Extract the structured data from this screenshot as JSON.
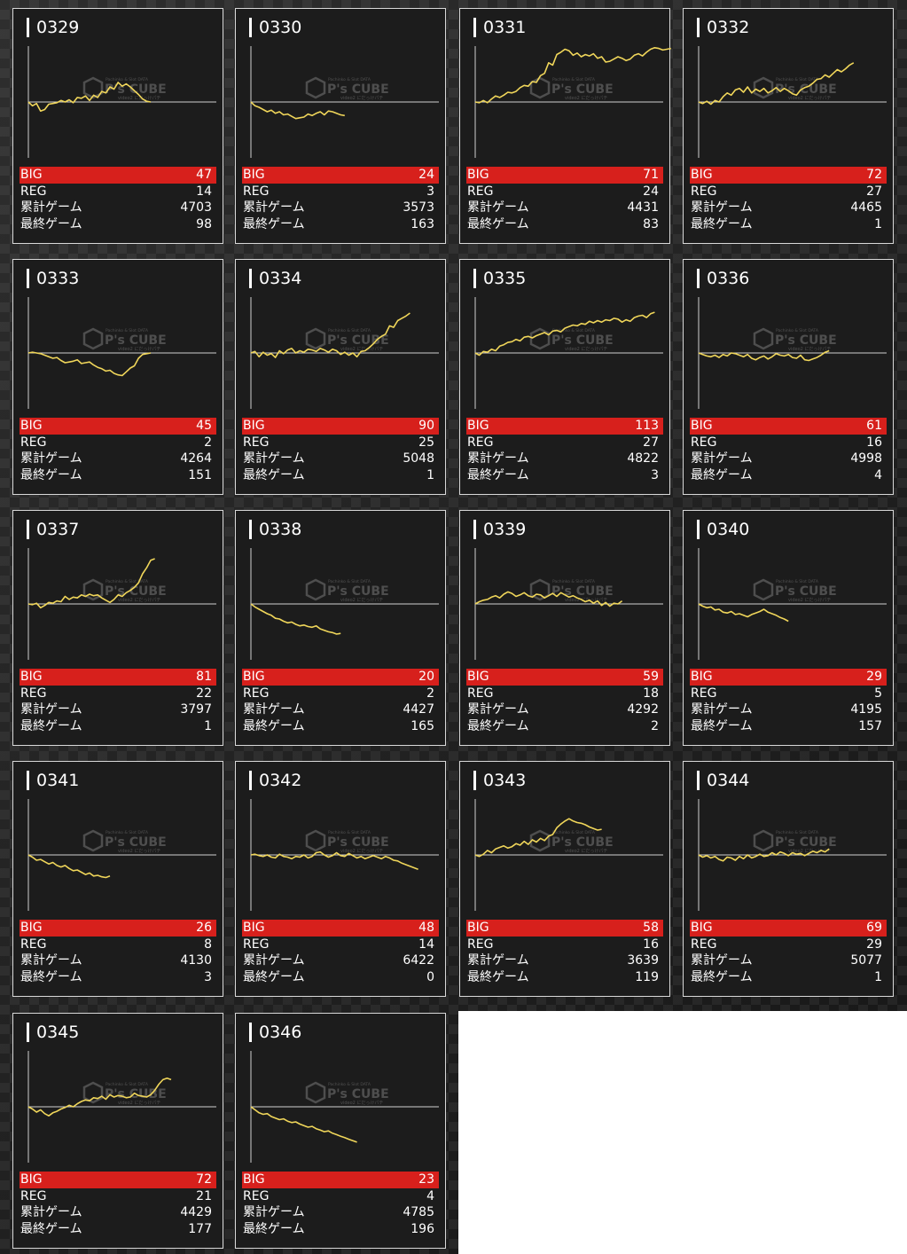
{
  "labels": {
    "big": "BIG",
    "reg": "REG",
    "total": "累計ゲーム",
    "last": "最終ゲーム"
  },
  "colors": {
    "big_bar": "#d7201c",
    "graph_line": "#f0d65a",
    "card_bg": "#1c1c1c"
  },
  "watermark": {
    "text": "P's CUBE",
    "small_top": "Pachinko & Slot DATA",
    "small_bottom": "video2 にだっけパチ"
  },
  "machines": [
    {
      "id": "0329",
      "big": "47",
      "reg": "14",
      "total": "4703",
      "last": "98",
      "graph": [
        0,
        -5,
        -2,
        -12,
        -10,
        -3,
        -2,
        -1,
        2,
        0,
        3,
        -1,
        6,
        5,
        8,
        2,
        9,
        6,
        14,
        12,
        20,
        17,
        26,
        21,
        24,
        20,
        15,
        10,
        4,
        1,
        0
      ]
    },
    {
      "id": "0330",
      "big": "24",
      "reg": "3",
      "total": "3573",
      "last": "163",
      "graph": [
        0,
        -5,
        -7,
        -10,
        -13,
        -11,
        -15,
        -13,
        -17,
        -16,
        -19,
        -22,
        -21,
        -20,
        -16,
        -18,
        -15,
        -13,
        -17,
        -12,
        -13,
        -15,
        -17,
        -18
      ]
    },
    {
      "id": "0331",
      "big": "71",
      "reg": "24",
      "total": "4431",
      "last": "83",
      "graph": [
        0,
        -1,
        2,
        -1,
        4,
        8,
        6,
        9,
        13,
        12,
        14,
        19,
        22,
        21,
        27,
        26,
        35,
        38,
        52,
        49,
        63,
        66,
        70,
        68,
        62,
        65,
        60,
        63,
        61,
        64,
        58,
        60,
        53,
        54,
        57,
        60,
        58,
        55,
        57,
        62,
        64,
        61,
        66,
        70,
        72,
        71,
        69,
        70,
        71
      ]
    },
    {
      "id": "0332",
      "big": "72",
      "reg": "27",
      "total": "4465",
      "last": "1",
      "graph": [
        0,
        -2,
        1,
        -3,
        2,
        0,
        7,
        12,
        9,
        16,
        18,
        13,
        20,
        12,
        17,
        14,
        18,
        12,
        15,
        19,
        14,
        18,
        15,
        11,
        9,
        16,
        19,
        21,
        25,
        30,
        31,
        36,
        33,
        38,
        43,
        40,
        44,
        49,
        52
      ]
    },
    {
      "id": "0333",
      "big": "45",
      "reg": "2",
      "total": "4264",
      "last": "151",
      "graph": [
        0,
        1,
        0,
        -1,
        -3,
        -5,
        -7,
        -6,
        -10,
        -13,
        -12,
        -11,
        -9,
        -14,
        -13,
        -12,
        -16,
        -19,
        -21,
        -24,
        -23,
        -27,
        -29,
        -30,
        -25,
        -20,
        -17,
        -7,
        -2,
        -1,
        0
      ]
    },
    {
      "id": "0334",
      "big": "90",
      "reg": "25",
      "total": "5048",
      "last": "1",
      "graph": [
        0,
        2,
        -5,
        1,
        -3,
        -1,
        -6,
        3,
        -1,
        4,
        6,
        0,
        3,
        1,
        5,
        4,
        2,
        6,
        4,
        1,
        5,
        3,
        -2,
        1,
        -3,
        0,
        -5,
        2,
        3,
        7,
        12,
        18,
        22,
        25,
        36,
        34,
        43,
        46,
        49,
        53
      ]
    },
    {
      "id": "0335",
      "big": "113",
      "reg": "27",
      "total": "4822",
      "last": "3",
      "graph": [
        0,
        -3,
        2,
        1,
        5,
        3,
        9,
        11,
        14,
        15,
        18,
        16,
        21,
        22,
        20,
        23,
        25,
        27,
        24,
        29,
        30,
        28,
        33,
        35,
        37,
        36,
        39,
        38,
        42,
        40,
        43,
        41,
        44,
        43,
        46,
        45,
        41,
        44,
        42,
        47,
        49,
        50,
        47,
        52,
        54
      ]
    },
    {
      "id": "0336",
      "big": "61",
      "reg": "16",
      "total": "4998",
      "last": "4",
      "graph": [
        0,
        -2,
        -4,
        -5,
        -3,
        -6,
        -2,
        -4,
        0,
        -1,
        -3,
        -5,
        -2,
        -7,
        -9,
        -6,
        -4,
        -8,
        -5,
        -1,
        -3,
        -4,
        -2,
        -6,
        -7,
        -3,
        -9,
        -10,
        -8,
        -6,
        -3,
        1,
        3
      ]
    },
    {
      "id": "0337",
      "big": "81",
      "reg": "22",
      "total": "3797",
      "last": "1",
      "graph": [
        0,
        -1,
        1,
        -5,
        -2,
        2,
        1,
        4,
        3,
        10,
        6,
        9,
        8,
        12,
        10,
        13,
        11,
        12,
        8,
        5,
        2,
        6,
        12,
        10,
        15,
        18,
        22,
        28,
        40,
        48,
        58,
        60
      ]
    },
    {
      "id": "0338",
      "big": "20",
      "reg": "2",
      "total": "4427",
      "last": "165",
      "graph": [
        0,
        -4,
        -7,
        -10,
        -13,
        -15,
        -19,
        -20,
        -23,
        -25,
        -24,
        -27,
        -29,
        -28,
        -30,
        -31,
        -29,
        -33,
        -35,
        -37,
        -38,
        -40,
        -39
      ]
    },
    {
      "id": "0339",
      "big": "59",
      "reg": "18",
      "total": "4292",
      "last": "2",
      "graph": [
        0,
        3,
        5,
        6,
        9,
        11,
        8,
        13,
        16,
        14,
        10,
        12,
        15,
        11,
        9,
        13,
        12,
        8,
        11,
        14,
        10,
        15,
        12,
        9,
        11,
        8,
        6,
        3,
        5,
        1,
        4,
        -2,
        2,
        -3,
        1,
        0,
        4
      ]
    },
    {
      "id": "0340",
      "big": "29",
      "reg": "5",
      "total": "4195",
      "last": "157",
      "graph": [
        0,
        -3,
        -5,
        -4,
        -8,
        -7,
        -11,
        -12,
        -10,
        -14,
        -13,
        -15,
        -17,
        -14,
        -12,
        -10,
        -7,
        -11,
        -13,
        -15,
        -18,
        -20,
        -23
      ]
    },
    {
      "id": "0341",
      "big": "26",
      "reg": "8",
      "total": "4130",
      "last": "3",
      "graph": [
        0,
        -3,
        -7,
        -6,
        -9,
        -12,
        -10,
        -14,
        -16,
        -14,
        -18,
        -21,
        -20,
        -23,
        -26,
        -24,
        -28,
        -27,
        -29,
        -30,
        -28
      ]
    },
    {
      "id": "0342",
      "big": "48",
      "reg": "14",
      "total": "6422",
      "last": "0",
      "graph": [
        0,
        1,
        -1,
        -2,
        0,
        -3,
        -4,
        1,
        -2,
        -3,
        -5,
        -2,
        -3,
        0,
        -4,
        -2,
        3,
        4,
        0,
        -3,
        -1,
        3,
        -1,
        -2,
        2,
        -1,
        -4,
        -2,
        -5,
        -3,
        -1,
        -3,
        -5,
        -2,
        -4,
        -7,
        -8,
        -11,
        -13,
        -15,
        -17,
        -19
      ]
    },
    {
      "id": "0343",
      "big": "58",
      "reg": "16",
      "total": "3639",
      "last": "119",
      "graph": [
        0,
        -2,
        1,
        6,
        3,
        8,
        10,
        12,
        9,
        11,
        15,
        13,
        18,
        14,
        20,
        17,
        22,
        19,
        25,
        27,
        36,
        41,
        45,
        48,
        45,
        43,
        42,
        40,
        37,
        35,
        33,
        34
      ]
    },
    {
      "id": "0344",
      "big": "69",
      "reg": "29",
      "total": "5077",
      "last": "1",
      "graph": [
        0,
        -3,
        -1,
        -4,
        -2,
        -6,
        -8,
        -3,
        -4,
        -7,
        -2,
        -5,
        0,
        -4,
        -2,
        1,
        -2,
        -1,
        3,
        0,
        4,
        2,
        -1,
        3,
        1,
        2,
        -1,
        2,
        5,
        3,
        6,
        4,
        8
      ]
    },
    {
      "id": "0345",
      "big": "72",
      "reg": "21",
      "total": "4429",
      "last": "177",
      "graph": [
        0,
        -3,
        -7,
        -4,
        -9,
        -12,
        -8,
        -6,
        -3,
        -1,
        2,
        0,
        4,
        7,
        9,
        8,
        12,
        11,
        14,
        10,
        16,
        13,
        15,
        14,
        12,
        13,
        18,
        15,
        14,
        13,
        16,
        22,
        30,
        36,
        38,
        36
      ]
    },
    {
      "id": "0346",
      "big": "23",
      "reg": "4",
      "total": "4785",
      "last": "196",
      "graph": [
        0,
        -4,
        -8,
        -10,
        -9,
        -13,
        -15,
        -17,
        -16,
        -19,
        -21,
        -20,
        -23,
        -25,
        -27,
        -26,
        -29,
        -31,
        -33,
        -32,
        -35,
        -37,
        -39,
        -41,
        -43,
        -45,
        -47
      ]
    }
  ]
}
